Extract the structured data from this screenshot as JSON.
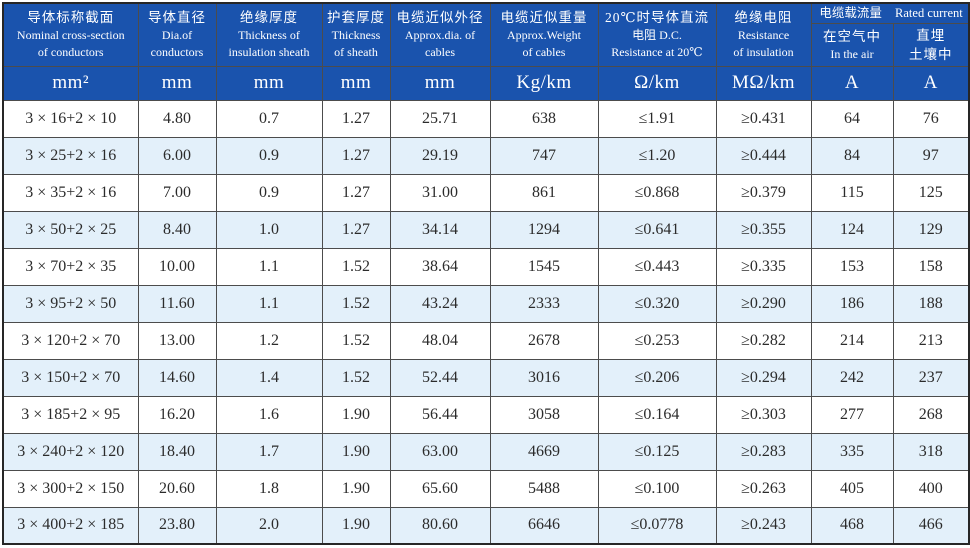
{
  "table": {
    "title_semantic": "Cable specification table",
    "columns": [
      {
        "zh": "导体标称截面",
        "en1": "Nominal cross-section",
        "en2": "of conductors",
        "unit": "mm²"
      },
      {
        "zh": "导体直径",
        "en1": "Dia.of",
        "en2": "conductors",
        "unit": "mm"
      },
      {
        "zh": "绝缘厚度",
        "en1": "Thickness of",
        "en2": "insulation sheath",
        "unit": "mm"
      },
      {
        "zh": "护套厚度",
        "en1": "Thickness",
        "en2": "of sheath",
        "unit": "mm"
      },
      {
        "zh": "电缆近似外径",
        "en1": "Approx.dia. of",
        "en2": "cables",
        "unit": "mm"
      },
      {
        "zh": "电缆近似重量",
        "en1": "Approx.Weight",
        "en2": "of cables",
        "unit": "Kg/km"
      },
      {
        "zh": "20℃时导体直流",
        "en1": "电阻 D.C.",
        "en2": "Resistance at 20℃",
        "unit": "Ω/km"
      },
      {
        "zh": "绝缘电阻",
        "en1": "Resistance",
        "en2": "of insulation",
        "unit": "MΩ/km"
      }
    ],
    "current_group": {
      "title_zh": "电缆载流量",
      "title_en": "Rated current",
      "sub_left": {
        "line1": "在空气中",
        "line2": "In the air",
        "unit": "A"
      },
      "sub_right": {
        "line1": "直埋",
        "line2": "土壤中",
        "unit": "A"
      }
    },
    "rows": [
      [
        "3 × 16+2 × 10",
        "4.80",
        "0.7",
        "1.27",
        "25.71",
        "638",
        "≤1.91",
        "≥0.431",
        "64",
        "76"
      ],
      [
        "3 × 25+2 × 16",
        "6.00",
        "0.9",
        "1.27",
        "29.19",
        "747",
        "≤1.20",
        "≥0.444",
        "84",
        "97"
      ],
      [
        "3 × 35+2 × 16",
        "7.00",
        "0.9",
        "1.27",
        "31.00",
        "861",
        "≤0.868",
        "≥0.379",
        "115",
        "125"
      ],
      [
        "3 × 50+2 × 25",
        "8.40",
        "1.0",
        "1.27",
        "34.14",
        "1294",
        "≤0.641",
        "≥0.355",
        "124",
        "129"
      ],
      [
        "3 × 70+2 × 35",
        "10.00",
        "1.1",
        "1.52",
        "38.64",
        "1545",
        "≤0.443",
        "≥0.335",
        "153",
        "158"
      ],
      [
        "3 × 95+2 × 50",
        "11.60",
        "1.1",
        "1.52",
        "43.24",
        "2333",
        "≤0.320",
        "≥0.290",
        "186",
        "188"
      ],
      [
        "3 × 120+2 × 70",
        "13.00",
        "1.2",
        "1.52",
        "48.04",
        "2678",
        "≤0.253",
        "≥0.282",
        "214",
        "213"
      ],
      [
        "3 × 150+2 × 70",
        "14.60",
        "1.4",
        "1.52",
        "52.44",
        "3016",
        "≤0.206",
        "≥0.294",
        "242",
        "237"
      ],
      [
        "3 × 185+2 × 95",
        "16.20",
        "1.6",
        "1.90",
        "56.44",
        "3058",
        "≤0.164",
        "≥0.303",
        "277",
        "268"
      ],
      [
        "3 × 240+2 × 120",
        "18.40",
        "1.7",
        "1.90",
        "63.00",
        "4669",
        "≤0.125",
        "≥0.283",
        "335",
        "318"
      ],
      [
        "3 × 300+2 × 150",
        "20.60",
        "1.8",
        "1.90",
        "65.60",
        "5488",
        "≤0.100",
        "≥0.263",
        "405",
        "400"
      ],
      [
        "3 × 400+2 × 185",
        "23.80",
        "2.0",
        "1.90",
        "80.60",
        "6646",
        "≤0.0778",
        "≥0.243",
        "468",
        "466"
      ]
    ],
    "colors": {
      "header_bg": "#1a53ad",
      "header_text": "#ffffff",
      "row_alt_bg": "#e3f0fa",
      "grid_line": "#4c4c4c",
      "outer_border": "#262626",
      "body_text": "#2b2b2b"
    }
  }
}
